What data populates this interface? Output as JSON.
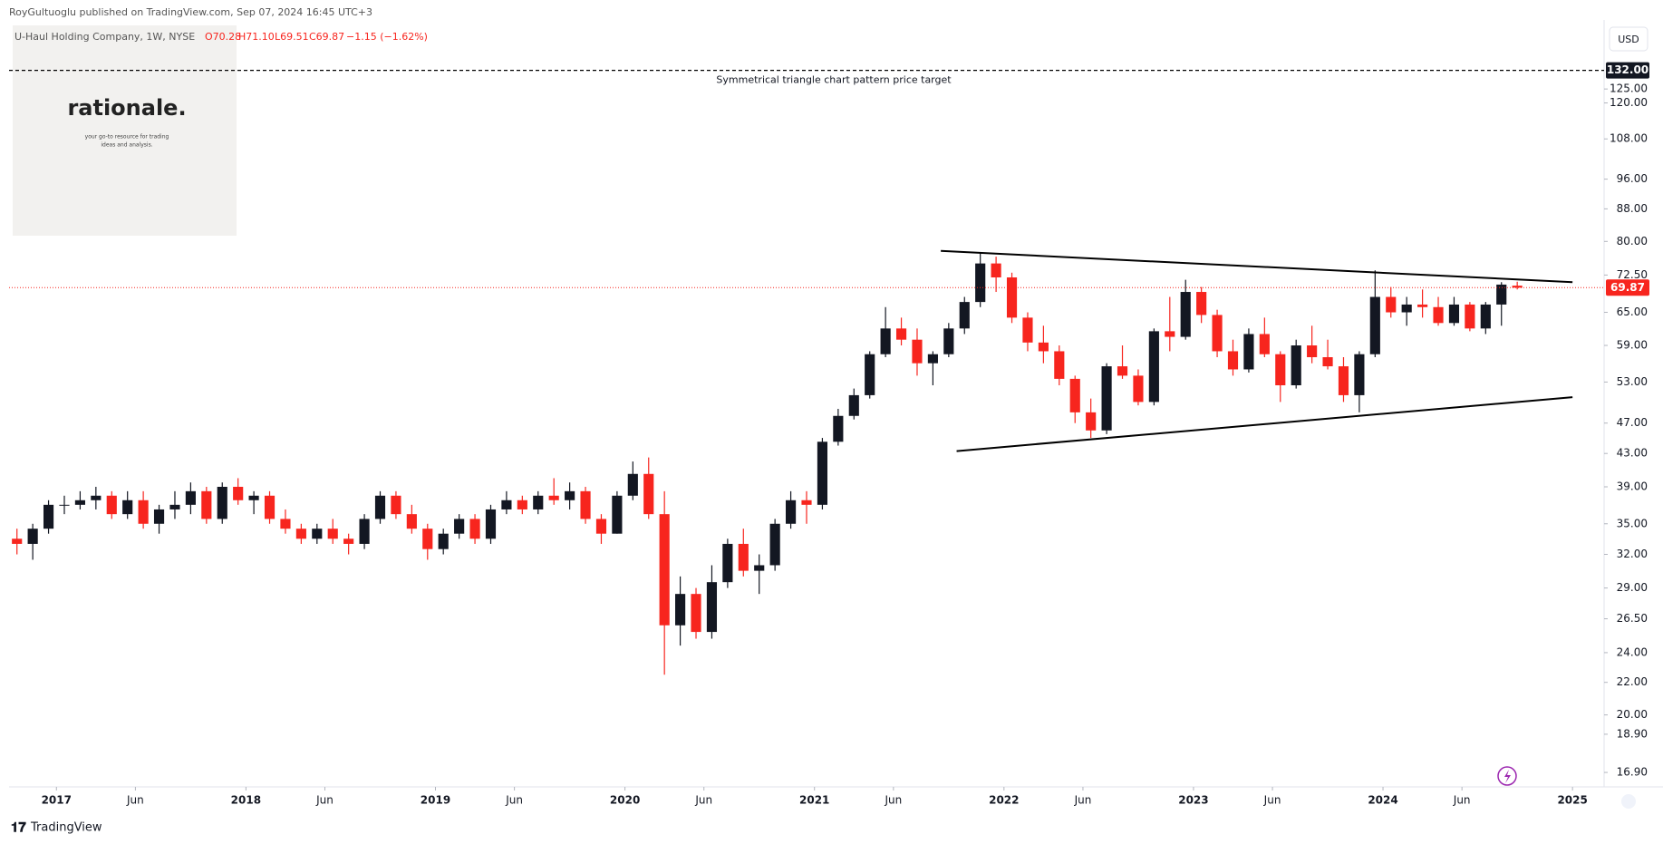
{
  "header": {
    "publisher": "RoyGultuoglu published on TradingView.com, Sep 07, 2024 16:45 UTC+3"
  },
  "logo": {
    "name": "rationale.",
    "tagline": [
      "your go-to resource for trading",
      "ideas and analysis."
    ]
  },
  "footer": {
    "brand": "TradingView"
  },
  "chart_data": {
    "type": "candlestick",
    "title": "U-Haul Holding Company, 1W, NYSE",
    "ohlc_legend": {
      "open": "O70.28",
      "high": "H71.10",
      "low": "L69.51",
      "close": "C69.87",
      "change": "−1.15 (−1.62%)"
    },
    "currency": "USD",
    "x": [
      "2016-10",
      "2016-11",
      "2016-12",
      "2017-01",
      "2017-02",
      "2017-03",
      "2017-04",
      "2017-05",
      "2017-06",
      "2017-07",
      "2017-08",
      "2017-09",
      "2017-10",
      "2017-11",
      "2017-12",
      "2018-01",
      "2018-02",
      "2018-03",
      "2018-04",
      "2018-05",
      "2018-06",
      "2018-07",
      "2018-08",
      "2018-09",
      "2018-10",
      "2018-11",
      "2018-12",
      "2019-01",
      "2019-02",
      "2019-03",
      "2019-04",
      "2019-05",
      "2019-06",
      "2019-07",
      "2019-08",
      "2019-09",
      "2019-10",
      "2019-11",
      "2019-12",
      "2020-01",
      "2020-02",
      "2020-03",
      "2020-04",
      "2020-05",
      "2020-06",
      "2020-07",
      "2020-08",
      "2020-09",
      "2020-10",
      "2020-11",
      "2020-12",
      "2021-01",
      "2021-02",
      "2021-03",
      "2021-04",
      "2021-05",
      "2021-06",
      "2021-07",
      "2021-08",
      "2021-09",
      "2021-10",
      "2021-11",
      "2021-12",
      "2022-01",
      "2022-02",
      "2022-03",
      "2022-04",
      "2022-05",
      "2022-06",
      "2022-07",
      "2022-08",
      "2022-09",
      "2022-10",
      "2022-11",
      "2022-12",
      "2023-01",
      "2023-02",
      "2023-03",
      "2023-04",
      "2023-05",
      "2023-06",
      "2023-07",
      "2023-08",
      "2023-09",
      "2023-10",
      "2023-11",
      "2023-12",
      "2024-01",
      "2024-02",
      "2024-03",
      "2024-04",
      "2024-05",
      "2024-06",
      "2024-07",
      "2024-08",
      "2024-09"
    ],
    "open": [
      33.5,
      33,
      34.5,
      37,
      37,
      37.5,
      38,
      36,
      37.5,
      35,
      36.5,
      37,
      38.5,
      35.5,
      39,
      37.5,
      38,
      35.5,
      34.5,
      33.5,
      34.5,
      33.5,
      33,
      35.5,
      38,
      36,
      34.5,
      32.5,
      34,
      35.5,
      33.5,
      36.5,
      37.5,
      36.5,
      38,
      37.5,
      38.5,
      35.5,
      34,
      38,
      40.5,
      36,
      26,
      28.5,
      25.5,
      29.5,
      33,
      30.5,
      31,
      35,
      37.5,
      37,
      44.5,
      48,
      51,
      57.5,
      62,
      60,
      56,
      57.5,
      62,
      67,
      75,
      72,
      64,
      59.5,
      58,
      53.5,
      48.5,
      46,
      55.5,
      54,
      50,
      61.5,
      60.5,
      69,
      64.5,
      58,
      55,
      61,
      57.5,
      52.5,
      59,
      57,
      55.5,
      51,
      57.5,
      68,
      65,
      66.5,
      66,
      63,
      66.5,
      62,
      66.5,
      70.28
    ],
    "high": [
      34.5,
      35,
      37.5,
      38,
      38.5,
      39,
      38.5,
      38.5,
      38.5,
      37,
      38.5,
      39.5,
      39,
      39.5,
      40,
      38.5,
      38.5,
      36.5,
      35,
      35,
      35.5,
      34,
      36,
      38.5,
      38.5,
      37,
      35,
      34.5,
      36,
      36,
      37,
      38.5,
      38,
      38.5,
      40,
      39.5,
      39,
      36,
      38.5,
      42,
      42.5,
      38.5,
      30,
      29,
      31,
      33.5,
      34.5,
      32,
      35.5,
      38.5,
      38.5,
      45,
      49,
      52,
      58,
      66,
      64,
      62,
      58,
      63,
      68,
      77.5,
      76.5,
      73,
      65,
      62.5,
      59,
      54,
      50.5,
      56,
      59,
      55,
      62,
      68,
      71.5,
      70,
      65.5,
      60,
      62,
      64,
      58,
      60,
      62.5,
      60,
      57,
      58,
      73.5,
      70,
      68,
      69.5,
      68,
      68,
      67,
      67,
      71,
      71.1
    ],
    "low": [
      32,
      31.5,
      34,
      36,
      36.5,
      36.5,
      35.5,
      35.5,
      34.5,
      34,
      35.5,
      36,
      35,
      35,
      37,
      36,
      35,
      34,
      33,
      33,
      33,
      32,
      32.5,
      35,
      35.5,
      34,
      31.5,
      32,
      33.5,
      33,
      33,
      36,
      36,
      36,
      37,
      36.5,
      35,
      33,
      34,
      37.5,
      35.5,
      22.5,
      24.5,
      25,
      25,
      29,
      30,
      28.5,
      30.5,
      34.5,
      35,
      36.5,
      44,
      47.5,
      50.5,
      57,
      59,
      54,
      52.5,
      57,
      61,
      66,
      69,
      63,
      58,
      56,
      52.5,
      47,
      45,
      45.5,
      53.5,
      49.5,
      49.5,
      58,
      60,
      63,
      57,
      54,
      54.5,
      57,
      50,
      52,
      56,
      55,
      50,
      48.5,
      57,
      64,
      62.5,
      64,
      62.5,
      62.5,
      61.5,
      61,
      62.5,
      69.51
    ],
    "close": [
      33,
      34.5,
      37,
      37,
      37.5,
      38,
      36,
      37.5,
      35,
      36.5,
      37,
      38.5,
      35.5,
      39,
      37.5,
      38,
      35.5,
      34.5,
      33.5,
      34.5,
      33.5,
      33,
      35.5,
      38,
      36,
      34.5,
      32.5,
      34,
      35.5,
      33.5,
      36.5,
      37.5,
      36.5,
      38,
      37.5,
      38.5,
      35.5,
      34,
      38,
      40.5,
      36,
      26,
      28.5,
      25.5,
      29.5,
      33,
      30.5,
      31,
      35,
      37.5,
      37,
      44.5,
      48,
      51,
      57.5,
      62,
      60,
      56,
      57.5,
      62,
      67,
      75,
      72,
      64,
      59.5,
      58,
      53.5,
      48.5,
      46,
      55.5,
      54,
      50,
      61.5,
      60.5,
      69,
      64.5,
      58,
      55,
      61,
      57.5,
      52.5,
      59,
      57,
      55.5,
      51,
      57.5,
      68,
      65,
      66.5,
      66,
      63,
      66.5,
      62,
      66.5,
      70.5,
      69.87
    ],
    "up_color": "#131722",
    "down_color": "#f7251e",
    "log_scale": true,
    "grid": false,
    "ylim": [
      16.2,
      153
    ],
    "yticks": [
      {
        "value": 16.9,
        "label": "16.90"
      },
      {
        "value": 18.9,
        "label": "18.90"
      },
      {
        "value": 20,
        "label": "20.00"
      },
      {
        "value": 22,
        "label": "22.00"
      },
      {
        "value": 24,
        "label": "24.00"
      },
      {
        "value": 26.5,
        "label": "26.50"
      },
      {
        "value": 29,
        "label": "29.00"
      },
      {
        "value": 32,
        "label": "32.00"
      },
      {
        "value": 35,
        "label": "35.00"
      },
      {
        "value": 39,
        "label": "39.00"
      },
      {
        "value": 43,
        "label": "43.00"
      },
      {
        "value": 47,
        "label": "47.00"
      },
      {
        "value": 53,
        "label": "53.00"
      },
      {
        "value": 59,
        "label": "59.00"
      },
      {
        "value": 65,
        "label": "65.00"
      },
      {
        "value": 72.5,
        "label": "72.50"
      },
      {
        "value": 80,
        "label": "80.00"
      },
      {
        "value": 88,
        "label": "88.00"
      },
      {
        "value": 96,
        "label": "96.00"
      },
      {
        "value": 108,
        "label": "108.00"
      },
      {
        "value": 120,
        "label": "120.00"
      },
      {
        "value": 125,
        "label": "125.00"
      }
    ],
    "xlim": [
      "2016-10",
      "2025-03"
    ],
    "xticks": [
      {
        "value": "2017-01",
        "label": "2017"
      },
      {
        "value": "2017-06",
        "label": "Jun"
      },
      {
        "value": "2018-01",
        "label": "2018"
      },
      {
        "value": "2018-06",
        "label": "Jun"
      },
      {
        "value": "2019-01",
        "label": "2019"
      },
      {
        "value": "2019-06",
        "label": "Jun"
      },
      {
        "value": "2020-01",
        "label": "2020"
      },
      {
        "value": "2020-06",
        "label": "Jun"
      },
      {
        "value": "2021-01",
        "label": "2021"
      },
      {
        "value": "2021-06",
        "label": "Jun"
      },
      {
        "value": "2022-01",
        "label": "2022"
      },
      {
        "value": "2022-06",
        "label": "Jun"
      },
      {
        "value": "2023-01",
        "label": "2023"
      },
      {
        "value": "2023-06",
        "label": "Jun"
      },
      {
        "value": "2024-01",
        "label": "2024"
      },
      {
        "value": "2024-06",
        "label": "Jun"
      },
      {
        "value": "2025-01",
        "label": "2025"
      }
    ],
    "trend_lines": [
      {
        "x": [
          "2021-09",
          "2025-01"
        ],
        "y": [
          77.8,
          71.0
        ]
      },
      {
        "x": [
          "2021-10",
          "2025-01"
        ],
        "y": [
          43.3,
          50.7
        ]
      }
    ],
    "price_target": {
      "value": 132,
      "label": "132.00",
      "text": "Symmetrical triangle chart pattern price target"
    }
  }
}
